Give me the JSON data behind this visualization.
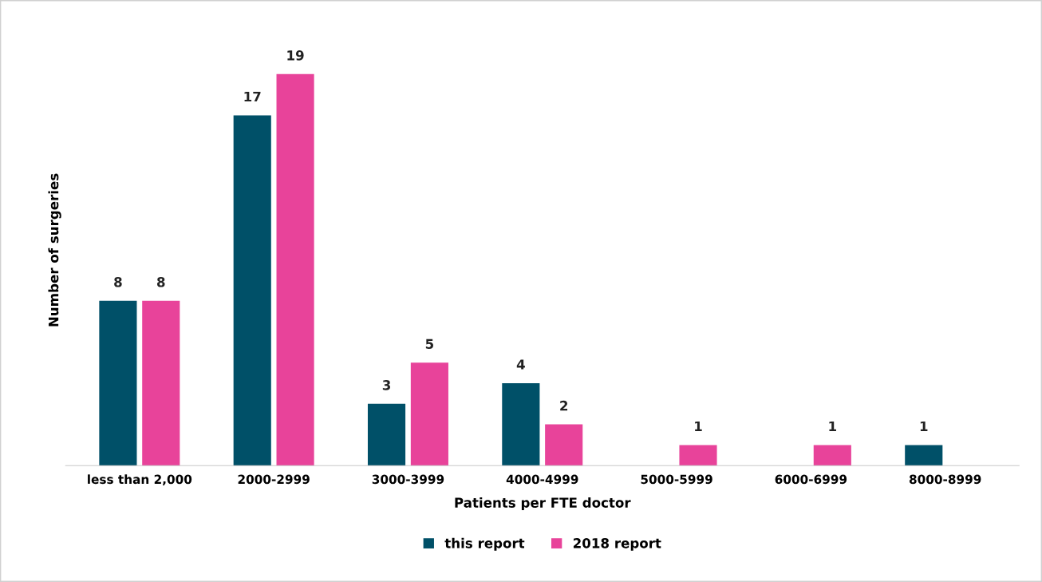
{
  "chart_data": {
    "type": "bar",
    "xlabel": "Patients per FTE doctor",
    "ylabel": "Number of surgeries",
    "categories": [
      "less than 2,000",
      "2000-2999",
      "3000-3999",
      "4000-4999",
      "5000-5999",
      "6000-6999",
      "8000-8999"
    ],
    "series": [
      {
        "name": "this report",
        "color": "#005068",
        "values": [
          8,
          17,
          3,
          4,
          null,
          null,
          1
        ]
      },
      {
        "name": "2018 report",
        "color": "#e8439a",
        "values": [
          8,
          19,
          5,
          2,
          1,
          1,
          null
        ]
      }
    ],
    "data_labels": true,
    "legend": "bottom",
    "grid": false
  }
}
